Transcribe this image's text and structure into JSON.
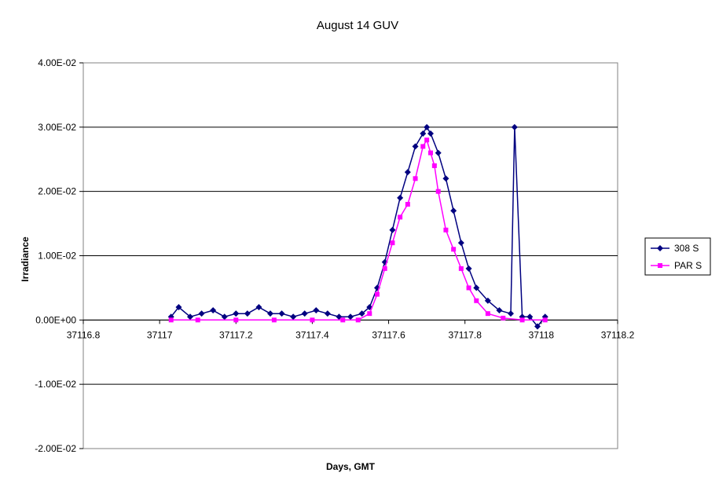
{
  "chart_data": {
    "type": "line",
    "title": "August 14 GUV",
    "xlabel": "Days, GMT",
    "ylabel": "Irradiance",
    "xlim": [
      37116.8,
      37118.2
    ],
    "ylim": [
      -0.02,
      0.04
    ],
    "x_ticks": [
      37116.8,
      37117,
      37117.2,
      37117.4,
      37117.6,
      37117.8,
      37118,
      37118.2
    ],
    "x_tick_labels": [
      "37116.8",
      "37117",
      "37117.2",
      "37117.4",
      "37117.6",
      "37117.8",
      "37118",
      "37118.2"
    ],
    "y_ticks": [
      -0.02,
      -0.01,
      0,
      0.01,
      0.02,
      0.03,
      0.04
    ],
    "y_tick_labels": [
      "-2.00E-02",
      "-1.00E-02",
      "0.00E+00",
      "1.00E-02",
      "2.00E-02",
      "3.00E-02",
      "4.00E-02"
    ],
    "grid": "horizontal major gridlines",
    "legend_position": "right",
    "series": [
      {
        "name": "308 S",
        "color": "#000080",
        "marker": "diamond",
        "x": [
          37117.03,
          37117.05,
          37117.08,
          37117.11,
          37117.14,
          37117.17,
          37117.2,
          37117.23,
          37117.26,
          37117.29,
          37117.32,
          37117.35,
          37117.38,
          37117.41,
          37117.44,
          37117.47,
          37117.5,
          37117.53,
          37117.55,
          37117.57,
          37117.59,
          37117.61,
          37117.63,
          37117.65,
          37117.67,
          37117.69,
          37117.7,
          37117.71,
          37117.73,
          37117.75,
          37117.77,
          37117.79,
          37117.81,
          37117.83,
          37117.86,
          37117.89,
          37117.92,
          37117.93,
          37117.95,
          37117.97,
          37117.99,
          37118.01
        ],
        "y": [
          0.0005,
          0.002,
          0.0005,
          0.001,
          0.0015,
          0.0005,
          0.001,
          0.001,
          0.002,
          0.001,
          0.001,
          0.0005,
          0.001,
          0.0015,
          0.001,
          0.0005,
          0.0005,
          0.001,
          0.002,
          0.005,
          0.009,
          0.014,
          0.019,
          0.023,
          0.027,
          0.029,
          0.03,
          0.029,
          0.026,
          0.022,
          0.017,
          0.012,
          0.008,
          0.005,
          0.003,
          0.0015,
          0.001,
          0.03,
          0.0005,
          0.0005,
          -0.001,
          0.0005
        ]
      },
      {
        "name": "PAR S",
        "color": "#FF00FF",
        "marker": "square",
        "x": [
          37117.03,
          37117.1,
          37117.2,
          37117.3,
          37117.4,
          37117.48,
          37117.52,
          37117.55,
          37117.57,
          37117.59,
          37117.61,
          37117.63,
          37117.65,
          37117.67,
          37117.69,
          37117.7,
          37117.71,
          37117.72,
          37117.73,
          37117.75,
          37117.77,
          37117.79,
          37117.81,
          37117.83,
          37117.86,
          37117.9,
          37117.95,
          37118.01
        ],
        "y": [
          0,
          0,
          0,
          0,
          0,
          0,
          0,
          0.001,
          0.004,
          0.008,
          0.012,
          0.016,
          0.018,
          0.022,
          0.027,
          0.028,
          0.026,
          0.024,
          0.02,
          0.014,
          0.011,
          0.008,
          0.005,
          0.003,
          0.001,
          0.0003,
          0,
          0
        ]
      }
    ]
  }
}
